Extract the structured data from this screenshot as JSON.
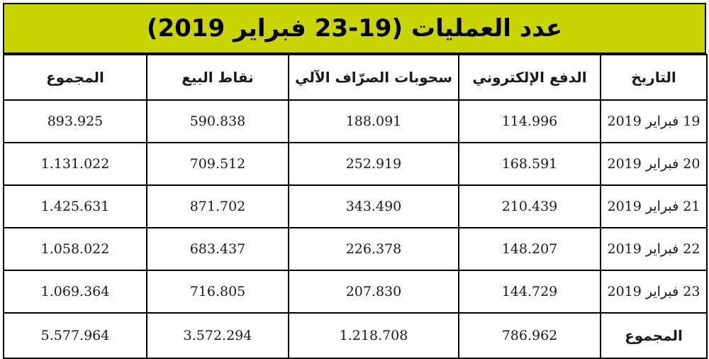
{
  "title": "عدد العمليات (19-23 فبراير 2019)",
  "headers": [
    "التاريخ",
    "الدفع الإلكتروني",
    "سحوبات الصرّاف الآلي",
    "نقاط البيع",
    "المجموع"
  ],
  "rows": [
    {
      "date": "19 فبراير 2019",
      "epay": "114.996",
      "atm": "188.091",
      "pos": "590.838",
      "total": "893.925"
    },
    {
      "date": "20 فبراير 2019",
      "epay": "168.591",
      "atm": "252.919",
      "pos": "709.512",
      "total": "1.131.022"
    },
    {
      "date": "21 فبراير 2019",
      "epay": "210.439",
      "atm": "343.490",
      "pos": "871.702",
      "total": "1.425.631"
    },
    {
      "date": "22 فبراير 2019",
      "epay": "148.207",
      "atm": "226.378",
      "pos": "683.437",
      "total": "1.058.022"
    },
    {
      "date": "23 فبراير 2019",
      "epay": "144.729",
      "atm": "207.830",
      "pos": "716.805",
      "total": "1.069.364"
    }
  ],
  "totals": {
    "label": "المجموع",
    "epay": "786.962",
    "atm": "1.218.708",
    "pos": "3.572.294",
    "total": "5.577.964"
  },
  "colors": {
    "title_bg": "#c9d400",
    "border": "#000000"
  }
}
